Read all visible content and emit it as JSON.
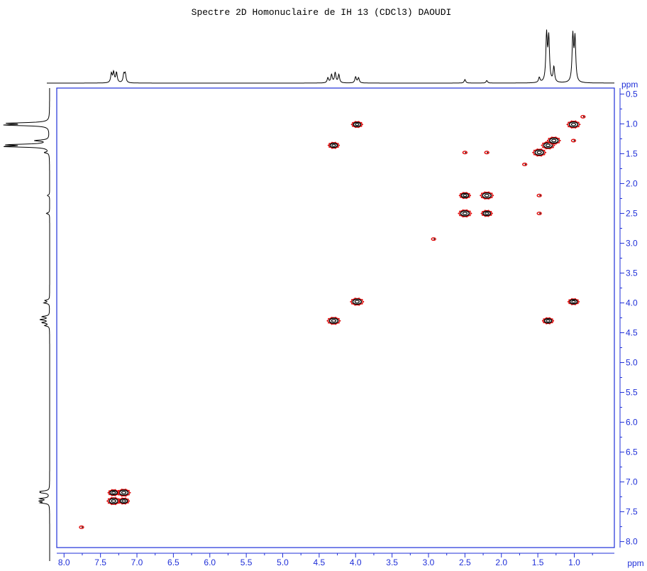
{
  "title": "Spectre 2D Homonuclaire de IH 13 (CDCl3) DAOUDI",
  "colors": {
    "frame": "#1f2fd8",
    "ticks": "#1f2fd8",
    "contour": "#000000",
    "peak_red": "#e01010",
    "trace": "#000000"
  },
  "chart_data": {
    "type": "scatter",
    "title": "Spectre 2D Homonuclaire de IH 13 (CDCl3) DAOUDI",
    "xlabel": "ppm",
    "ylabel": "ppm",
    "xlim": [
      8.1,
      0.45
    ],
    "ylim": [
      0.4,
      8.1
    ],
    "x_ticks": [
      "8.0",
      "7.5",
      "7.0",
      "6.5",
      "6.0",
      "5.5",
      "5.0",
      "4.5",
      "4.0",
      "3.5",
      "3.0",
      "2.5",
      "2.0",
      "1.5",
      "1.0",
      "ppm"
    ],
    "y_ticks": [
      "0.5",
      "1.0",
      "1.5",
      "2.0",
      "2.5",
      "3.0",
      "3.5",
      "4.0",
      "4.5",
      "5.0",
      "5.5",
      "6.0",
      "6.5",
      "7.0",
      "7.5",
      "8.0",
      "ppm"
    ],
    "grid": false,
    "projection_1d": {
      "peaks": [
        {
          "ppm": 7.35,
          "height": 0.18
        },
        {
          "ppm": 7.32,
          "height": 0.2
        },
        {
          "ppm": 7.28,
          "height": 0.2
        },
        {
          "ppm": 7.18,
          "height": 0.16
        },
        {
          "ppm": 7.16,
          "height": 0.17
        },
        {
          "ppm": 4.38,
          "height": 0.1
        },
        {
          "ppm": 4.33,
          "height": 0.16
        },
        {
          "ppm": 4.28,
          "height": 0.2
        },
        {
          "ppm": 4.23,
          "height": 0.16
        },
        {
          "ppm": 4.0,
          "height": 0.12
        },
        {
          "ppm": 3.96,
          "height": 0.1
        },
        {
          "ppm": 2.5,
          "height": 0.07
        },
        {
          "ppm": 2.2,
          "height": 0.05
        },
        {
          "ppm": 1.48,
          "height": 0.1
        },
        {
          "ppm": 1.38,
          "height": 0.92
        },
        {
          "ppm": 1.35,
          "height": 0.85
        },
        {
          "ppm": 1.28,
          "height": 0.3
        },
        {
          "ppm": 1.02,
          "height": 0.9
        },
        {
          "ppm": 0.99,
          "height": 0.85
        }
      ]
    },
    "cross_peaks": [
      {
        "x": 7.32,
        "y": 7.32,
        "kind": "diag"
      },
      {
        "x": 7.18,
        "y": 7.18,
        "kind": "diag"
      },
      {
        "x": 7.32,
        "y": 7.18,
        "kind": "cross"
      },
      {
        "x": 7.18,
        "y": 7.32,
        "kind": "cross"
      },
      {
        "x": 7.76,
        "y": 7.76,
        "kind": "minor"
      },
      {
        "x": 4.3,
        "y": 4.3,
        "kind": "diag"
      },
      {
        "x": 4.3,
        "y": 1.36,
        "kind": "cross"
      },
      {
        "x": 1.36,
        "y": 4.3,
        "kind": "cross"
      },
      {
        "x": 3.98,
        "y": 3.98,
        "kind": "diag"
      },
      {
        "x": 3.98,
        "y": 1.01,
        "kind": "cross"
      },
      {
        "x": 1.01,
        "y": 3.98,
        "kind": "cross"
      },
      {
        "x": 2.5,
        "y": 2.5,
        "kind": "diag"
      },
      {
        "x": 2.2,
        "y": 2.2,
        "kind": "diag"
      },
      {
        "x": 2.5,
        "y": 2.2,
        "kind": "cross"
      },
      {
        "x": 2.2,
        "y": 2.5,
        "kind": "cross"
      },
      {
        "x": 2.5,
        "y": 1.48,
        "kind": "minor"
      },
      {
        "x": 2.2,
        "y": 1.48,
        "kind": "minor"
      },
      {
        "x": 1.48,
        "y": 2.2,
        "kind": "minor"
      },
      {
        "x": 1.48,
        "y": 2.5,
        "kind": "minor"
      },
      {
        "x": 2.93,
        "y": 2.93,
        "kind": "minor"
      },
      {
        "x": 1.48,
        "y": 1.48,
        "kind": "diag"
      },
      {
        "x": 1.36,
        "y": 1.36,
        "kind": "diag"
      },
      {
        "x": 1.28,
        "y": 1.28,
        "kind": "diag"
      },
      {
        "x": 1.01,
        "y": 1.01,
        "kind": "diag"
      },
      {
        "x": 1.01,
        "y": 1.28,
        "kind": "minor"
      },
      {
        "x": 0.88,
        "y": 0.88,
        "kind": "minor"
      },
      {
        "x": 1.68,
        "y": 1.68,
        "kind": "minor"
      }
    ]
  }
}
